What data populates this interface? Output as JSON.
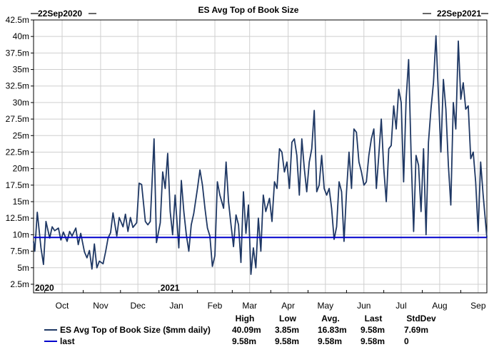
{
  "chart_data": {
    "type": "line",
    "title": "ES Avg Top of Book Size",
    "start_label": "22Sep2020",
    "end_label": "22Sep2021",
    "x_start": "2020-09-22",
    "x_end": "2021-09-22",
    "ylim": [
      2.5,
      42.5
    ],
    "y_ticks": [
      "2.5m",
      "5m",
      "7.5m",
      "10m",
      "12.5m",
      "15m",
      "17.5m",
      "20m",
      "22.5m",
      "25m",
      "27.5m",
      "30m",
      "32.5m",
      "35m",
      "37.5m",
      "40m",
      "42.5m"
    ],
    "y_tick_values": [
      2.5,
      5,
      7.5,
      10,
      12.5,
      15,
      17.5,
      20,
      22.5,
      25,
      27.5,
      30,
      32.5,
      35,
      37.5,
      40,
      42.5
    ],
    "x_ticks": [
      {
        "label": "Oct",
        "date": "2020-10-15"
      },
      {
        "label": "Nov",
        "date": "2020-11-15"
      },
      {
        "label": "Dec",
        "date": "2020-12-15"
      },
      {
        "label": "Jan",
        "date": "2021-01-15"
      },
      {
        "label": "Feb",
        "date": "2021-02-15"
      },
      {
        "label": "Mar",
        "date": "2021-03-15"
      },
      {
        "label": "Apr",
        "date": "2021-04-15"
      },
      {
        "label": "May",
        "date": "2021-05-15"
      },
      {
        "label": "Jun",
        "date": "2021-06-15"
      },
      {
        "label": "Jul",
        "date": "2021-07-15"
      },
      {
        "label": "Aug",
        "date": "2021-08-15"
      },
      {
        "label": "Sep",
        "date": "2021-09-15"
      }
    ],
    "year_labels": [
      {
        "label": "2020",
        "date": "2020-09-22"
      },
      {
        "label": "2021",
        "date": "2021-01-01"
      }
    ],
    "grid": true,
    "stats_headers": [
      "High",
      "Low",
      "Avg.",
      "Last",
      "StdDev"
    ],
    "series": [
      {
        "name": "ES Avg Top of Book Size ($mm daily)",
        "color": "#1f3864",
        "stats": [
          "40.09m",
          "3.85m",
          "16.83m",
          "9.58m",
          "7.69m"
        ],
        "points": [
          [
            "2020-09-22",
            9.0
          ],
          [
            "2020-09-23",
            7.5
          ],
          [
            "2020-09-25",
            13.4
          ],
          [
            "2020-09-28",
            8.0
          ],
          [
            "2020-09-30",
            5.5
          ],
          [
            "2020-10-02",
            12.0
          ],
          [
            "2020-10-05",
            9.5
          ],
          [
            "2020-10-07",
            11.2
          ],
          [
            "2020-10-09",
            10.6
          ],
          [
            "2020-10-12",
            11.0
          ],
          [
            "2020-10-14",
            9.2
          ],
          [
            "2020-10-16",
            10.4
          ],
          [
            "2020-10-19",
            9.0
          ],
          [
            "2020-10-21",
            10.5
          ],
          [
            "2020-10-23",
            9.8
          ],
          [
            "2020-10-26",
            11.0
          ],
          [
            "2020-10-28",
            8.5
          ],
          [
            "2020-10-30",
            10.2
          ],
          [
            "2020-11-02",
            7.4
          ],
          [
            "2020-11-04",
            6.5
          ],
          [
            "2020-11-06",
            7.6
          ],
          [
            "2020-11-08",
            4.8
          ],
          [
            "2020-11-10",
            8.6
          ],
          [
            "2020-11-12",
            5.0
          ],
          [
            "2020-11-14",
            6.0
          ],
          [
            "2020-11-17",
            5.6
          ],
          [
            "2020-11-19",
            7.4
          ],
          [
            "2020-11-21",
            9.5
          ],
          [
            "2020-11-23",
            10.3
          ],
          [
            "2020-11-25",
            13.3
          ],
          [
            "2020-11-28",
            9.8
          ],
          [
            "2020-11-30",
            12.6
          ],
          [
            "2020-12-03",
            11.2
          ],
          [
            "2020-12-05",
            13.1
          ],
          [
            "2020-12-07",
            10.5
          ],
          [
            "2020-12-09",
            12.6
          ],
          [
            "2020-12-11",
            11.1
          ],
          [
            "2020-12-14",
            11.8
          ],
          [
            "2020-12-16",
            17.8
          ],
          [
            "2020-12-18",
            17.6
          ],
          [
            "2020-12-21",
            12.0
          ],
          [
            "2020-12-23",
            11.5
          ],
          [
            "2020-12-25",
            12.0
          ],
          [
            "2020-12-28",
            24.5
          ],
          [
            "2020-12-30",
            8.8
          ],
          [
            "2021-01-02",
            11.8
          ],
          [
            "2021-01-04",
            19.5
          ],
          [
            "2021-01-06",
            17.0
          ],
          [
            "2021-01-08",
            22.3
          ],
          [
            "2021-01-10",
            13.5
          ],
          [
            "2021-01-12",
            10.0
          ],
          [
            "2021-01-14",
            16.0
          ],
          [
            "2021-01-17",
            8.0
          ],
          [
            "2021-01-19",
            18.2
          ],
          [
            "2021-01-21",
            13.5
          ],
          [
            "2021-01-23",
            10.0
          ],
          [
            "2021-01-25",
            7.5
          ],
          [
            "2021-01-27",
            11.5
          ],
          [
            "2021-01-29",
            13.2
          ],
          [
            "2021-02-01",
            17.0
          ],
          [
            "2021-02-03",
            19.8
          ],
          [
            "2021-02-05",
            17.5
          ],
          [
            "2021-02-07",
            14.0
          ],
          [
            "2021-02-09",
            11.0
          ],
          [
            "2021-02-11",
            9.8
          ],
          [
            "2021-02-13",
            5.2
          ],
          [
            "2021-02-15",
            6.8
          ],
          [
            "2021-02-17",
            18.0
          ],
          [
            "2021-02-19",
            16.0
          ],
          [
            "2021-02-22",
            14.0
          ],
          [
            "2021-02-24",
            21.0
          ],
          [
            "2021-02-26",
            15.0
          ],
          [
            "2021-02-28",
            11.5
          ],
          [
            "2021-03-02",
            8.2
          ],
          [
            "2021-03-04",
            13.0
          ],
          [
            "2021-03-06",
            11.5
          ],
          [
            "2021-03-08",
            5.8
          ],
          [
            "2021-03-10",
            16.5
          ],
          [
            "2021-03-12",
            10.2
          ],
          [
            "2021-03-14",
            14.5
          ],
          [
            "2021-03-16",
            4.0
          ],
          [
            "2021-03-18",
            8.0
          ],
          [
            "2021-03-20",
            5.0
          ],
          [
            "2021-03-22",
            12.5
          ],
          [
            "2021-03-24",
            7.5
          ],
          [
            "2021-03-26",
            16.0
          ],
          [
            "2021-03-28",
            13.5
          ],
          [
            "2021-03-31",
            15.5
          ],
          [
            "2021-04-02",
            12.0
          ],
          [
            "2021-04-04",
            18.0
          ],
          [
            "2021-04-06",
            17.0
          ],
          [
            "2021-04-08",
            23.0
          ],
          [
            "2021-04-10",
            22.5
          ],
          [
            "2021-04-12",
            19.5
          ],
          [
            "2021-04-14",
            21.0
          ],
          [
            "2021-04-16",
            17.0
          ],
          [
            "2021-04-18",
            24.0
          ],
          [
            "2021-04-20",
            24.5
          ],
          [
            "2021-04-22",
            22.0
          ],
          [
            "2021-04-24",
            16.0
          ],
          [
            "2021-04-26",
            24.5
          ],
          [
            "2021-04-28",
            20.0
          ],
          [
            "2021-04-30",
            16.5
          ],
          [
            "2021-05-02",
            21.0
          ],
          [
            "2021-05-04",
            23.0
          ],
          [
            "2021-05-06",
            28.8
          ],
          [
            "2021-05-08",
            16.5
          ],
          [
            "2021-05-10",
            17.5
          ],
          [
            "2021-05-12",
            22.0
          ],
          [
            "2021-05-14",
            17.0
          ],
          [
            "2021-05-16",
            16.0
          ],
          [
            "2021-05-18",
            17.0
          ],
          [
            "2021-05-20",
            14.0
          ],
          [
            "2021-05-22",
            9.3
          ],
          [
            "2021-05-24",
            11.2
          ],
          [
            "2021-05-26",
            18.0
          ],
          [
            "2021-05-28",
            16.5
          ],
          [
            "2021-05-30",
            9.0
          ],
          [
            "2021-06-01",
            16.5
          ],
          [
            "2021-06-03",
            22.5
          ],
          [
            "2021-06-05",
            17.0
          ],
          [
            "2021-06-07",
            26.0
          ],
          [
            "2021-06-09",
            25.5
          ],
          [
            "2021-06-11",
            21.0
          ],
          [
            "2021-06-13",
            19.5
          ],
          [
            "2021-06-15",
            17.5
          ],
          [
            "2021-06-17",
            18.0
          ],
          [
            "2021-06-19",
            22.0
          ],
          [
            "2021-06-21",
            24.5
          ],
          [
            "2021-06-23",
            26.0
          ],
          [
            "2021-06-25",
            17.0
          ],
          [
            "2021-06-27",
            22.0
          ],
          [
            "2021-06-29",
            27.5
          ],
          [
            "2021-07-01",
            20.0
          ],
          [
            "2021-07-03",
            15.0
          ],
          [
            "2021-07-05",
            23.0
          ],
          [
            "2021-07-07",
            23.5
          ],
          [
            "2021-07-09",
            29.5
          ],
          [
            "2021-07-11",
            26.0
          ],
          [
            "2021-07-13",
            32.0
          ],
          [
            "2021-07-15",
            30.0
          ],
          [
            "2021-07-17",
            18.0
          ],
          [
            "2021-07-19",
            30.5
          ],
          [
            "2021-07-21",
            36.5
          ],
          [
            "2021-07-23",
            22.0
          ],
          [
            "2021-07-25",
            10.5
          ],
          [
            "2021-07-27",
            22.0
          ],
          [
            "2021-07-29",
            20.5
          ],
          [
            "2021-07-31",
            13.5
          ],
          [
            "2021-08-02",
            23.0
          ],
          [
            "2021-08-04",
            10.0
          ],
          [
            "2021-08-06",
            24.0
          ],
          [
            "2021-08-08",
            29.0
          ],
          [
            "2021-08-10",
            33.0
          ],
          [
            "2021-08-12",
            40.09
          ],
          [
            "2021-08-14",
            31.0
          ],
          [
            "2021-08-16",
            22.5
          ],
          [
            "2021-08-18",
            33.5
          ],
          [
            "2021-08-20",
            29.0
          ],
          [
            "2021-08-22",
            20.5
          ],
          [
            "2021-08-24",
            14.5
          ],
          [
            "2021-08-26",
            30.0
          ],
          [
            "2021-08-28",
            26.0
          ],
          [
            "2021-08-30",
            39.3
          ],
          [
            "2021-09-01",
            30.5
          ],
          [
            "2021-09-03",
            33.0
          ],
          [
            "2021-09-05",
            29.0
          ],
          [
            "2021-09-07",
            29.5
          ],
          [
            "2021-09-09",
            21.5
          ],
          [
            "2021-09-11",
            22.5
          ],
          [
            "2021-09-13",
            18.0
          ],
          [
            "2021-09-15",
            10.5
          ],
          [
            "2021-09-17",
            21.0
          ],
          [
            "2021-09-19",
            16.0
          ],
          [
            "2021-09-22",
            9.58
          ]
        ]
      },
      {
        "name": "last",
        "color": "#0000cc",
        "stats": [
          "9.58m",
          "9.58m",
          "9.58m",
          "9.58m",
          "0"
        ],
        "value": 9.58
      }
    ]
  }
}
